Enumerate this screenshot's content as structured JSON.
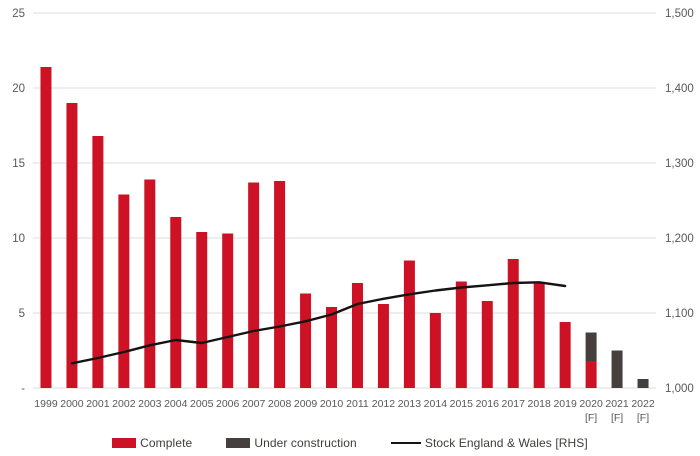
{
  "chart_data": {
    "type": "bar",
    "subtype": "stacked-bars-with-line",
    "title": "",
    "categories": [
      "1999",
      "2000",
      "2001",
      "2002",
      "2003",
      "2004",
      "2005",
      "2006",
      "2007",
      "2008",
      "2009",
      "2010",
      "2011",
      "2012",
      "2013",
      "2014",
      "2015",
      "2016",
      "2017",
      "2018",
      "2019",
      "2020",
      "2021",
      "2022"
    ],
    "forecast_flag_label": "[F]",
    "forecast_years": [
      "2020",
      "2021",
      "2022"
    ],
    "series": [
      {
        "name": "Complete",
        "type": "bar",
        "axis": "left",
        "color": "#cd1226",
        "values": [
          21.4,
          19.0,
          16.8,
          12.9,
          13.9,
          11.4,
          10.4,
          10.3,
          13.7,
          13.8,
          6.3,
          5.4,
          7.0,
          5.6,
          8.5,
          5.0,
          7.1,
          5.8,
          8.6,
          7.0,
          4.4,
          1.8,
          0,
          0
        ]
      },
      {
        "name": "Under construction",
        "type": "bar",
        "axis": "left",
        "color": "#453f3d",
        "values": [
          0,
          0,
          0,
          0,
          0,
          0,
          0,
          0,
          0,
          0,
          0,
          0,
          0,
          0,
          0,
          0,
          0,
          0,
          0,
          0,
          0,
          1.9,
          2.5,
          0.6
        ]
      },
      {
        "name": "Stock England & Wales [RHS]",
        "type": "line",
        "axis": "right",
        "color": "#161412",
        "values": [
          null,
          1033,
          1040,
          1048,
          1057,
          1064,
          1060,
          1068,
          1076,
          1082,
          1089,
          1098,
          1112,
          1119,
          1125,
          1130,
          1134,
          1137,
          1140,
          1141,
          1136,
          null,
          null,
          null
        ]
      }
    ],
    "left_axis": {
      "min": 0,
      "max": 25,
      "tick_step": 5,
      "tick_labels_top_to_bottom": [
        "25",
        "20",
        "15",
        "10",
        "5",
        "-"
      ]
    },
    "right_axis": {
      "min": 1000,
      "max": 1500,
      "tick_step": 100,
      "tick_labels_top_to_bottom": [
        "1,500",
        "1,400",
        "1,300",
        "1,200",
        "1,100",
        "1,000"
      ]
    },
    "grid": "horizontal",
    "legend_position": "bottom-center",
    "colors": {
      "complete_bar": "#cd1226",
      "under_construction_bar": "#453f3d",
      "stock_line": "#161412",
      "axis_text": "#57585a",
      "gridline": "#dddddd",
      "background": "#ffffff"
    }
  }
}
